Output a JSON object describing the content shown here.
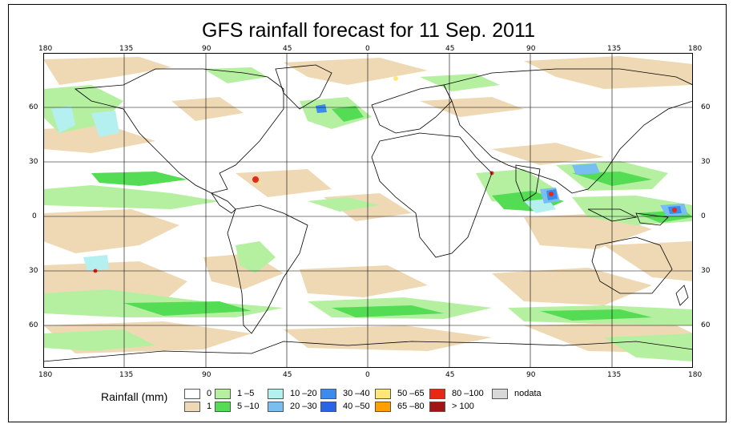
{
  "title": "GFS rainfall forecast for 11 Sep. 2011",
  "lon_labels": [
    "180",
    "135",
    "90",
    "45",
    "0",
    "45",
    "90",
    "135",
    "180"
  ],
  "lat_labels": [
    "60",
    "30",
    "0",
    "30",
    "60"
  ],
  "legend": {
    "title": "Rainfall (mm)",
    "items": [
      {
        "label": "0",
        "color": "#ffffff"
      },
      {
        "label": "1",
        "color": "#efd9b4"
      },
      {
        "label": "1 –5",
        "color": "#b4f0a0"
      },
      {
        "label": "5 –10",
        "color": "#55dc55"
      },
      {
        "label": "10 –20",
        "color": "#b4f0f0"
      },
      {
        "label": "20 –30",
        "color": "#78bef0"
      },
      {
        "label": "30 –40",
        "color": "#3c8cf0"
      },
      {
        "label": "40 –50",
        "color": "#2864e6"
      },
      {
        "label": "50 –65",
        "color": "#ffe678"
      },
      {
        "label": "65 –80",
        "color": "#ffa000"
      },
      {
        "label": "80 –100",
        "color": "#e62814"
      },
      {
        "label": "> 100",
        "color": "#a01414"
      },
      {
        "label": "nodata",
        "color": "#d8d8d8"
      }
    ]
  }
}
